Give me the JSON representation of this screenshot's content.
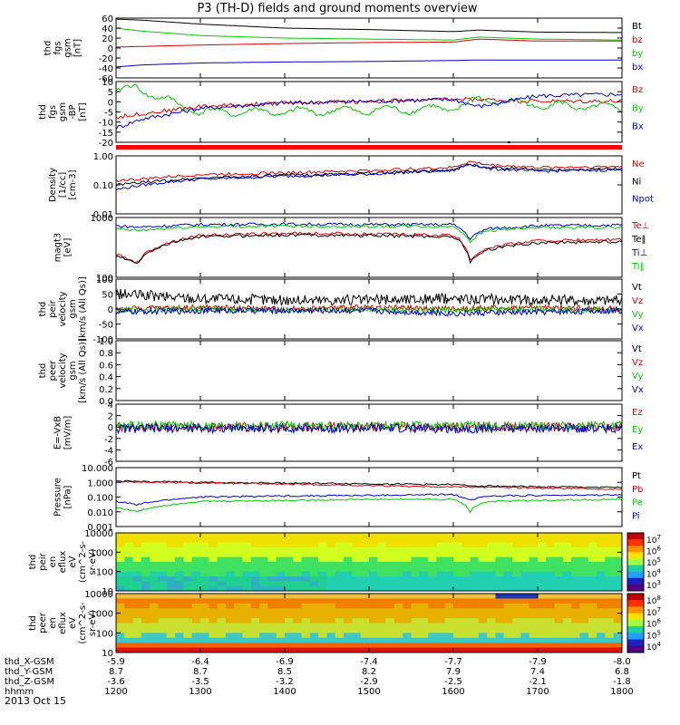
{
  "title": "P3 (TH-D) fields and ground moments overview",
  "date_label": "2013 Oct 15",
  "colors": {
    "black": "#000000",
    "red": "#e00000",
    "green": "#00cc00",
    "blue": "#0000cc",
    "bar_red": "#ff0000"
  },
  "chart_data": [
    {
      "type": "line",
      "title": "",
      "ylabel_lines": [
        "thd",
        "fgs",
        "gsm",
        "[nT]"
      ],
      "ylim": [
        -60,
        60
      ],
      "yticks": [
        "60",
        "40",
        "20",
        "0",
        "-20",
        "-40",
        "-60"
      ],
      "series": [
        {
          "name": "Bt",
          "color": "#000000",
          "x": [
            1200,
            1230,
            1300,
            1400,
            1500,
            1600,
            1630,
            1700,
            1800
          ],
          "y": [
            58,
            56,
            48,
            40,
            37,
            33,
            36,
            32,
            31
          ]
        },
        {
          "name": "bz",
          "color": "#e00000",
          "x": [
            1200,
            1300,
            1400,
            1500,
            1600,
            1630,
            1700,
            1800
          ],
          "y": [
            2,
            6,
            9,
            11,
            12,
            18,
            14,
            14
          ]
        },
        {
          "name": "by",
          "color": "#00cc00",
          "x": [
            1200,
            1230,
            1300,
            1400,
            1500,
            1600,
            1630,
            1700,
            1800
          ],
          "y": [
            40,
            34,
            25,
            20,
            18,
            16,
            22,
            18,
            16
          ]
        },
        {
          "name": "bx",
          "color": "#0000cc",
          "x": [
            1200,
            1230,
            1300,
            1400,
            1500,
            1600,
            1630,
            1700,
            1800
          ],
          "y": [
            -38,
            -34,
            -30,
            -28,
            -27,
            -25,
            -24,
            -24,
            -24
          ]
        }
      ]
    },
    {
      "type": "line",
      "title": "",
      "ylabel_lines": [
        "thd",
        "fgs",
        "gsm",
        "-BP",
        "[nT]"
      ],
      "ylim": [
        -22,
        12
      ],
      "yticks": [
        "10",
        "5",
        "0",
        "-5",
        "-10",
        "-15",
        "-20"
      ],
      "series": [
        {
          "name": "Bz",
          "color": "#e00000",
          "x": [
            1200,
            1230,
            1300,
            1400,
            1500,
            1600,
            1630,
            1700,
            1800
          ],
          "y": [
            -8,
            -6,
            -2,
            0,
            1,
            2,
            2,
            1,
            1
          ]
        },
        {
          "name": "By",
          "color": "#00cc00",
          "x": [
            1200,
            1225,
            1250,
            1300,
            1400,
            1500,
            1600,
            1630,
            1700,
            1800
          ],
          "y": [
            6,
            9,
            3,
            -5,
            -5,
            -4,
            -3,
            2,
            -1,
            -3
          ]
        },
        {
          "name": "Bx",
          "color": "#0000cc",
          "x": [
            1200,
            1230,
            1300,
            1400,
            1500,
            1600,
            1630,
            1700,
            1800
          ],
          "y": [
            -14,
            -9,
            -3,
            0,
            1,
            2,
            -2,
            4,
            5
          ]
        }
      ]
    },
    {
      "type": "line",
      "title": "",
      "yscale": "log",
      "ylabel_lines": [
        "Density",
        "[1/cc]",
        "[cm-3]"
      ],
      "ylim": [
        0.01,
        1.5
      ],
      "yticks": [
        "1.00",
        "0.10",
        "0.01"
      ],
      "series": [
        {
          "name": "Ne",
          "color": "#e00000",
          "x": [
            1200,
            1230,
            1300,
            1400,
            1500,
            1600,
            1620,
            1640,
            1700,
            1800
          ],
          "y": [
            0.18,
            0.2,
            0.3,
            0.35,
            0.42,
            0.55,
            0.9,
            0.7,
            0.55,
            0.6
          ]
        },
        {
          "name": "Ni",
          "color": "#000000",
          "x": [
            1200,
            1230,
            1300,
            1400,
            1500,
            1600,
            1620,
            1640,
            1700,
            1800
          ],
          "y": [
            0.12,
            0.15,
            0.22,
            0.28,
            0.33,
            0.45,
            0.7,
            0.55,
            0.45,
            0.5
          ]
        },
        {
          "name": "Npot",
          "color": "#0000cc",
          "x": [
            1200,
            1230,
            1300,
            1400,
            1500,
            1600,
            1620,
            1640,
            1700,
            1800
          ],
          "y": [
            0.08,
            0.12,
            0.2,
            0.26,
            0.31,
            0.42,
            0.75,
            0.5,
            0.4,
            0.45
          ]
        }
      ]
    },
    {
      "type": "line",
      "title": "",
      "yscale": "log",
      "ylabel_lines": [
        "magt3",
        "[eV]"
      ],
      "ylim": [
        60,
        9000
      ],
      "yticks": [
        "1000",
        "100"
      ],
      "series": [
        {
          "name": "Te⊥",
          "color": "#e00000",
          "x": [
            1200,
            1225,
            1300,
            1400,
            1500,
            1600,
            1620,
            1640,
            1700,
            1800
          ],
          "y": [
            400,
            200,
            2000,
            2400,
            2300,
            2000,
            250,
            700,
            1300,
            1400
          ]
        },
        {
          "name": "Te‖",
          "color": "#000000",
          "x": [
            1200,
            1225,
            1300,
            1400,
            1500,
            1600,
            1620,
            1640,
            1700,
            1800
          ],
          "y": [
            350,
            180,
            1800,
            2100,
            2000,
            1800,
            200,
            600,
            1100,
            1200
          ]
        },
        {
          "name": "Ti⊥",
          "color": "#0000cc",
          "x": [
            1200,
            1225,
            1300,
            1400,
            1500,
            1600,
            1620,
            1640,
            1700,
            1800
          ],
          "y": [
            4500,
            4000,
            5000,
            5200,
            5000,
            5000,
            1500,
            3500,
            4500,
            4800
          ]
        },
        {
          "name": "Ti‖",
          "color": "#00cc00",
          "x": [
            1200,
            1225,
            1300,
            1400,
            1500,
            1600,
            1620,
            1640,
            1700,
            1800
          ],
          "y": [
            3500,
            3000,
            4200,
            4400,
            4300,
            4200,
            1200,
            3000,
            3800,
            4000
          ]
        }
      ]
    },
    {
      "type": "line",
      "title": "",
      "ylabel_lines": [
        "thd",
        "peir",
        "velocity",
        "gsm",
        "[km/s (All Qs)]"
      ],
      "ylim": [
        -100,
        100
      ],
      "yticks": [
        "100",
        "50",
        "0",
        "-50",
        "-100"
      ],
      "series": [
        {
          "name": "Vt",
          "color": "#000000",
          "x": [
            1200,
            1300,
            1400,
            1500,
            1600,
            1700,
            1800
          ],
          "y": [
            50,
            35,
            30,
            30,
            35,
            30,
            30
          ]
        },
        {
          "name": "Vz",
          "color": "#e00000",
          "x": [
            1200,
            1300,
            1400,
            1500,
            1600,
            1700,
            1800
          ],
          "y": [
            0,
            5,
            0,
            5,
            0,
            5,
            0
          ]
        },
        {
          "name": "Vy",
          "color": "#00cc00",
          "x": [
            1200,
            1300,
            1400,
            1500,
            1600,
            1700,
            1800
          ],
          "y": [
            -5,
            0,
            -5,
            0,
            -5,
            0,
            -5
          ]
        },
        {
          "name": "Vx",
          "color": "#0000cc",
          "x": [
            1200,
            1300,
            1400,
            1500,
            1600,
            1700,
            1800
          ],
          "y": [
            -10,
            -5,
            -5,
            -5,
            -15,
            -10,
            -5
          ]
        }
      ]
    },
    {
      "type": "line",
      "title": "",
      "ylabel_lines": [
        "thd",
        "peer",
        "velocity",
        "gsm",
        "[km/s (All Qs)]"
      ],
      "ylim": [
        0,
        1
      ],
      "yticks": [
        "1.0",
        "0.8",
        "0.6",
        "0.4",
        "0.2",
        "0.0"
      ],
      "series": [
        {
          "name": "Vt",
          "color": "#000000",
          "x": [],
          "y": []
        },
        {
          "name": "Vz",
          "color": "#e00000",
          "x": [],
          "y": []
        },
        {
          "name": "Vy",
          "color": "#00cc00",
          "x": [],
          "y": []
        },
        {
          "name": "Vx",
          "color": "#0000cc",
          "x": [],
          "y": []
        }
      ]
    },
    {
      "type": "line",
      "title": "",
      "ylabel_lines": [
        "E=-VxB",
        "[mV/m]"
      ],
      "ylim": [
        -6,
        4
      ],
      "yticks": [
        "4",
        "2",
        "0",
        "-2",
        "-4",
        "-6"
      ],
      "series": [
        {
          "name": "Ez",
          "color": "#e00000",
          "x": [
            1200,
            1300,
            1400,
            1500,
            1600,
            1700,
            1800
          ],
          "y": [
            0,
            0,
            0,
            0,
            0,
            0,
            0
          ]
        },
        {
          "name": "Ey",
          "color": "#00cc00",
          "x": [
            1200,
            1300,
            1400,
            1500,
            1600,
            1700,
            1800
          ],
          "y": [
            0.3,
            0.2,
            0.2,
            0.2,
            0.2,
            0.2,
            0.2
          ]
        },
        {
          "name": "Ex",
          "color": "#0000cc",
          "x": [
            1200,
            1300,
            1400,
            1500,
            1600,
            1700,
            1800
          ],
          "y": [
            -0.3,
            -0.2,
            -0.2,
            -0.2,
            -0.3,
            -0.2,
            -0.2
          ]
        }
      ]
    },
    {
      "type": "line",
      "title": "",
      "yscale": "log",
      "ylabel_lines": [
        "Pressure",
        "[nPa]"
      ],
      "ylim": [
        0.001,
        10
      ],
      "yticks": [
        "10.000",
        "1.000",
        "0.100",
        "0.010",
        "0.001"
      ],
      "series": [
        {
          "name": "Pt",
          "color": "#000000",
          "x": [
            1200,
            1300,
            1400,
            1500,
            1600,
            1620,
            1700,
            1800
          ],
          "y": [
            1.2,
            1.0,
            0.9,
            0.8,
            0.7,
            0.6,
            0.5,
            0.45
          ]
        },
        {
          "name": "Pb",
          "color": "#e00000",
          "x": [
            1200,
            1300,
            1400,
            1500,
            1600,
            1620,
            1700,
            1800
          ],
          "y": [
            1.1,
            0.9,
            0.75,
            0.6,
            0.5,
            0.5,
            0.4,
            0.35
          ]
        },
        {
          "name": "Pe",
          "color": "#00cc00",
          "x": [
            1200,
            1225,
            1300,
            1400,
            1500,
            1600,
            1620,
            1640,
            1700,
            1800
          ],
          "y": [
            0.02,
            0.01,
            0.05,
            0.06,
            0.07,
            0.07,
            0.01,
            0.05,
            0.06,
            0.07
          ]
        },
        {
          "name": "Pi",
          "color": "#0000cc",
          "x": [
            1200,
            1225,
            1300,
            1400,
            1500,
            1600,
            1620,
            1640,
            1700,
            1800
          ],
          "y": [
            0.05,
            0.03,
            0.1,
            0.12,
            0.13,
            0.15,
            0.06,
            0.12,
            0.13,
            0.14
          ]
        }
      ]
    },
    {
      "type": "heatmap",
      "title": "",
      "ylabel_lines": [
        "thd",
        "peir",
        "en",
        "eflux",
        "eV",
        "(cm^2-s-",
        "sr-eV)"
      ],
      "ylim": [
        5,
        30000
      ],
      "yticks": [
        "10000",
        "1000",
        "100",
        "10"
      ],
      "colorbar_ticks": [
        "10^7",
        "10^6",
        "10^5",
        "10^4",
        "10^3"
      ]
    },
    {
      "type": "heatmap",
      "title": "",
      "ylabel_lines": [
        "thd",
        "peer",
        "en",
        "eflux",
        "eV",
        "(cm^2-s-",
        "sr-eV)"
      ],
      "ylim": [
        5,
        30000
      ],
      "yticks": [
        "10000",
        "1000",
        "100",
        "10"
      ],
      "colorbar_ticks": [
        "10^8",
        "10^7",
        "10^6",
        "10^5",
        "10^4"
      ]
    }
  ],
  "xaxis": {
    "xlim": [
      1200,
      1800
    ],
    "tick_times": [
      1200,
      1300,
      1400,
      1500,
      1600,
      1700,
      1800
    ],
    "row_labels": [
      "thd_X-GSM",
      "thd_Y-GSM",
      "thd_Z-GSM",
      "hhmm"
    ],
    "rows": [
      [
        "-5.9",
        "-6.4",
        "-6.9",
        "-7.4",
        "-7.7",
        "-7.9",
        "-8.0"
      ],
      [
        "8.7",
        "8.7",
        "8.5",
        "8.2",
        "7.9",
        "7.4",
        "6.8"
      ],
      [
        "-3.6",
        "-3.5",
        "-3.2",
        "-2.9",
        "-2.5",
        "-2.1",
        "-1.8"
      ],
      [
        "1200",
        "1300",
        "1400",
        "1500",
        "1600",
        "1700",
        "1800"
      ]
    ]
  }
}
